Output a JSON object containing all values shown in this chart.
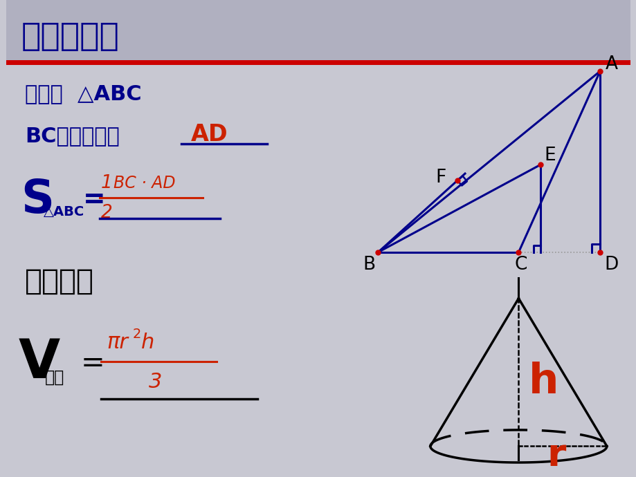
{
  "bg_color_main": "#c8c8d2",
  "title_bg": "#b0b0c0",
  "title_text": "知识回顾：",
  "title_color": "#00008B",
  "red_line_color": "#cc0000",
  "blue_color": "#00008B",
  "red_color": "#cc2200",
  "black_color": "#000000",
  "line1": "如图：  △ABC",
  "line2_pre": "BC边上的高是",
  "line2_ans": "AD",
  "right_fig": "右图中，",
  "s_sub": "△ABC",
  "v_sub": "圆锥"
}
